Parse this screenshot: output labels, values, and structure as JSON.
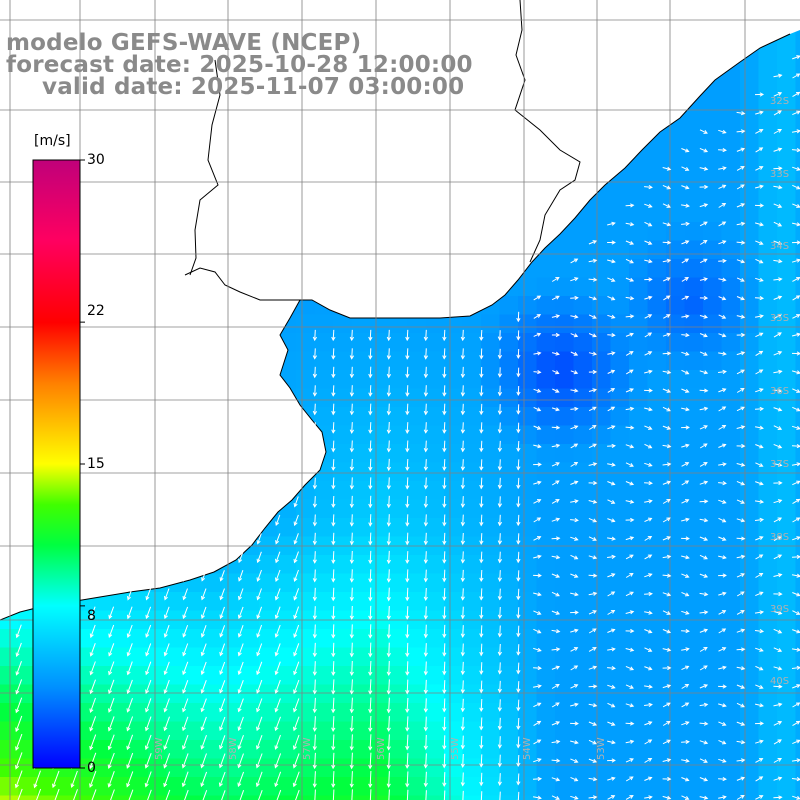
{
  "title": {
    "line1": "modelo GEFS-WAVE (NCEP)",
    "line2": "forecast date: 2025-10-28 12:00:00",
    "line3": "valid date: 2025-11-07 03:00:00"
  },
  "colorbar": {
    "unit": "[m/s]",
    "ticks": [
      {
        "label": "30",
        "value": 30
      },
      {
        "label": "22",
        "value": 22
      },
      {
        "label": "15",
        "value": 15
      },
      {
        "label": "8",
        "value": 8
      },
      {
        "label": "0",
        "value": 0
      }
    ],
    "colors": [
      "#0000ff",
      "#0090ff",
      "#00ffff",
      "#00ff40",
      "#40ff00",
      "#ffff00",
      "#ff8000",
      "#ff0000",
      "#ff0060",
      "#c0007a"
    ]
  },
  "lat_labels": [
    "32S",
    "33S",
    "34S",
    "35S",
    "36S",
    "37S",
    "38S",
    "39S",
    "40S"
  ],
  "lon_labels": [
    "59W",
    "58W",
    "57W",
    "56W",
    "55W",
    "54W",
    "53W"
  ],
  "map": {
    "land_color": "#ffffff",
    "coast_color": "#000000",
    "grid_color": "#808080",
    "arrow_color": "#ffffff"
  }
}
